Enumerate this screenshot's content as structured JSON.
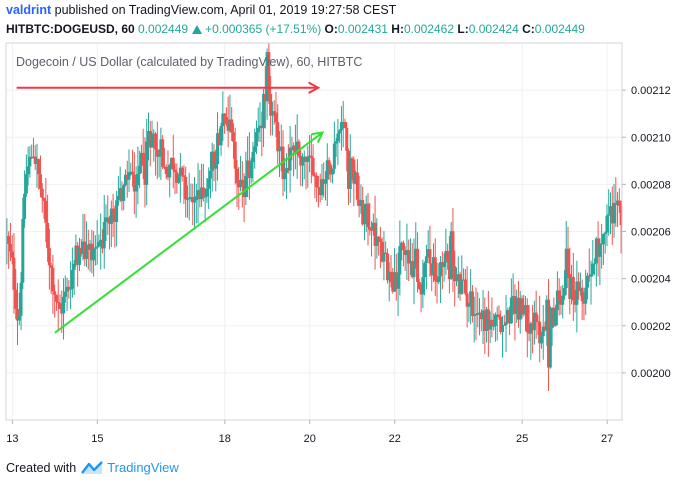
{
  "header": {
    "author": "valdrint",
    "published_text": "published on TradingView.com, April 01, 2019 19:27:58 CEST"
  },
  "quote": {
    "symbol": "HITBTC:DOGEUSD, 60",
    "last": "0.002449",
    "change": "+0.000365 (+17.51%)",
    "o_label": "O:",
    "o_value": "0.002431",
    "h_label": "H:",
    "h_value": "0.002462",
    "l_label": "L:",
    "l_value": "0.002424",
    "c_label": "C:",
    "c_value": "0.002449"
  },
  "footer": {
    "created_with": "Created with",
    "brand": "TradingView"
  },
  "chart_data": {
    "type": "candlestick",
    "title": "Dogecoin / US Dollar (calculated by TradingView), 60, HITBTC",
    "x_tick_labels": [
      "13",
      "15",
      "18",
      "20",
      "22",
      "25",
      "27"
    ],
    "x_tick_days": [
      13,
      15,
      18,
      20,
      22,
      25,
      27
    ],
    "x_range_days": [
      12.85,
      27.35
    ],
    "ylim": [
      0.00198,
      0.00214
    ],
    "y_tick_labels": [
      "0.00200",
      "0.00202",
      "0.00204",
      "0.00206",
      "0.00208",
      "0.00210",
      "0.00212"
    ],
    "y_ticks": [
      0.002,
      0.00202,
      0.00204,
      0.00206,
      0.00208,
      0.0021,
      0.00212
    ],
    "grid": true,
    "up_color": "#26a69a",
    "down_color": "#ef5350",
    "annotations": [
      {
        "type": "arrow",
        "color": "#f23645",
        "from": [
          13.1,
          0.002121
        ],
        "to": [
          20.2,
          0.002121
        ]
      },
      {
        "type": "arrow",
        "color": "#33e033",
        "from": [
          14.0,
          0.002017
        ],
        "to": [
          20.3,
          0.002102
        ]
      }
    ],
    "price_path": [
      [
        12.85,
        0.002058
      ],
      [
        13.0,
        0.002045
      ],
      [
        13.15,
        0.00202
      ],
      [
        13.3,
        0.002082
      ],
      [
        13.5,
        0.002095
      ],
      [
        13.7,
        0.002075
      ],
      [
        13.9,
        0.002045
      ],
      [
        14.1,
        0.002025
      ],
      [
        14.3,
        0.002035
      ],
      [
        14.5,
        0.00205
      ],
      [
        14.8,
        0.002052
      ],
      [
        15.1,
        0.002058
      ],
      [
        15.3,
        0.002062
      ],
      [
        15.5,
        0.002072
      ],
      [
        15.7,
        0.002085
      ],
      [
        15.9,
        0.002082
      ],
      [
        16.1,
        0.002095
      ],
      [
        16.3,
        0.002102
      ],
      [
        16.5,
        0.002085
      ],
      [
        16.8,
        0.00209
      ],
      [
        17.0,
        0.00208
      ],
      [
        17.2,
        0.00207
      ],
      [
        17.4,
        0.002078
      ],
      [
        17.6,
        0.002082
      ],
      [
        17.8,
        0.002095
      ],
      [
        18.0,
        0.002115
      ],
      [
        18.2,
        0.002095
      ],
      [
        18.4,
        0.002075
      ],
      [
        18.6,
        0.00209
      ],
      [
        18.8,
        0.002108
      ],
      [
        19.0,
        0.002118
      ],
      [
        19.2,
        0.002102
      ],
      [
        19.4,
        0.002085
      ],
      [
        19.6,
        0.002098
      ],
      [
        19.8,
        0.002092
      ],
      [
        20.0,
        0.002088
      ],
      [
        20.2,
        0.00208
      ],
      [
        20.4,
        0.002085
      ],
      [
        20.6,
        0.002095
      ],
      [
        20.8,
        0.002105
      ],
      [
        21.0,
        0.002088
      ],
      [
        21.2,
        0.002068
      ],
      [
        21.4,
        0.002065
      ],
      [
        21.6,
        0.002055
      ],
      [
        21.8,
        0.002045
      ],
      [
        22.0,
        0.002038
      ],
      [
        22.2,
        0.002055
      ],
      [
        22.4,
        0.002045
      ],
      [
        22.6,
        0.002035
      ],
      [
        22.8,
        0.002052
      ],
      [
        23.0,
        0.002038
      ],
      [
        23.2,
        0.002048
      ],
      [
        23.4,
        0.00204
      ],
      [
        23.6,
        0.002035
      ],
      [
        23.8,
        0.00203
      ],
      [
        24.0,
        0.002025
      ],
      [
        24.2,
        0.002022
      ],
      [
        24.4,
        0.00202
      ],
      [
        24.6,
        0.00202
      ],
      [
        24.8,
        0.002032
      ],
      [
        25.0,
        0.002025
      ],
      [
        25.2,
        0.002022
      ],
      [
        25.4,
        0.002018
      ],
      [
        25.6,
        0.00202
      ],
      [
        25.8,
        0.002028
      ],
      [
        26.0,
        0.00204
      ],
      [
        26.2,
        0.002035
      ],
      [
        26.4,
        0.00203
      ],
      [
        26.6,
        0.002045
      ],
      [
        26.8,
        0.002055
      ],
      [
        27.0,
        0.002065
      ],
      [
        27.2,
        0.002072
      ],
      [
        27.35,
        0.002065
      ]
    ]
  }
}
